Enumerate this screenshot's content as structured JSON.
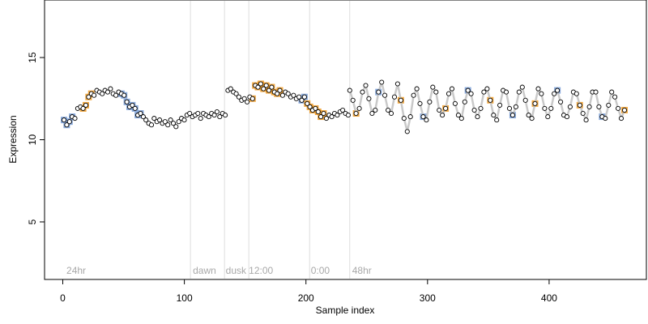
{
  "chart_data": {
    "type": "scatter",
    "title": "",
    "xlabel": "Sample index",
    "ylabel": "Expression",
    "xlim": [
      -15,
      480
    ],
    "ylim": [
      1.5,
      18.5
    ],
    "x_ticks": [
      0,
      100,
      200,
      300,
      400
    ],
    "y_ticks": [
      5,
      10,
      15
    ],
    "grid": false,
    "legend": "none",
    "region_boundaries": [
      105,
      133,
      153,
      203,
      236
    ],
    "region_labels": [
      {
        "x": 3,
        "text": "24hr"
      },
      {
        "x": 107,
        "text": "dawn"
      },
      {
        "x": 134,
        "text": "dusk"
      },
      {
        "x": 153,
        "text": "12:00"
      },
      {
        "x": 204,
        "text": "0:00"
      },
      {
        "x": 238,
        "text": "48hr"
      }
    ],
    "series": [
      {
        "values": [
          11.2,
          10.9,
          11.1,
          11.4,
          11.3,
          11.9,
          12.0,
          11.9,
          12.1,
          12.6,
          12.8,
          12.7,
          13.0,
          12.9,
          12.8,
          13.0,
          12.9,
          13.1,
          12.8,
          12.7,
          12.9,
          12.8,
          12.7,
          12.3,
          12.0,
          12.1,
          11.9,
          11.5,
          11.6,
          11.4,
          11.2,
          11.0,
          10.9,
          11.3,
          11.1,
          11.2,
          11.0,
          11.1,
          10.9,
          11.2,
          11.0,
          10.8,
          11.1,
          11.3,
          11.2,
          11.5,
          11.6,
          11.4,
          11.5,
          11.6,
          11.3,
          11.6,
          11.5,
          11.4,
          11.6,
          11.5,
          11.7,
          11.4,
          11.6,
          11.5,
          13.0,
          13.1,
          12.9,
          12.8,
          12.6,
          12.4,
          12.5,
          12.3,
          12.6,
          12.5,
          13.3,
          13.2,
          13.4,
          13.1,
          13.3,
          13.0,
          13.2,
          12.9,
          12.8,
          13.0,
          12.7,
          12.9,
          12.8,
          12.6,
          12.7,
          12.5,
          12.6,
          12.4,
          12.6,
          12.2,
          12.0,
          11.8,
          11.9,
          11.7,
          11.4,
          11.6,
          11.3,
          11.5,
          11.4,
          11.6,
          11.5,
          11.7,
          11.8,
          11.6,
          11.5
        ]
      },
      {
        "values": [
          13.0,
          12.4,
          11.6,
          11.9,
          12.9,
          13.3,
          12.5,
          11.6,
          11.8,
          12.9,
          13.5,
          12.7,
          11.8,
          11.6,
          12.6,
          13.4,
          12.4,
          11.3,
          10.5,
          11.4,
          12.7,
          13.1,
          12.2,
          11.4,
          11.2,
          12.3,
          13.2,
          12.9,
          11.8,
          11.5,
          11.9,
          12.8,
          13.1,
          12.2,
          11.5,
          11.3,
          12.3,
          13.0,
          12.8,
          11.8,
          11.4,
          11.9,
          12.9,
          13.1,
          12.4,
          11.5,
          11.2,
          12.1,
          13.0,
          12.9,
          11.9,
          11.5,
          12.0,
          12.9,
          13.2,
          12.4,
          11.5,
          11.3,
          12.2,
          13.1,
          12.8,
          11.9,
          11.4,
          11.9,
          12.8,
          13.0,
          12.3,
          11.5,
          11.4,
          12.0,
          12.9,
          12.8,
          12.1,
          11.6,
          11.2,
          12.0,
          12.9,
          12.9,
          12.0,
          11.4,
          11.3,
          12.1,
          12.9,
          12.6,
          11.9,
          11.3,
          11.8
        ]
      }
    ],
    "colors": {
      "points_fill": "#ffffff",
      "points_stroke": "#000000",
      "highlight_orange": "#f0a030",
      "highlight_blue": "#7ea2d8",
      "trend_line": "#bbbbbb",
      "region_line": "#dddddd",
      "region_label": "#a8a8a8"
    }
  }
}
